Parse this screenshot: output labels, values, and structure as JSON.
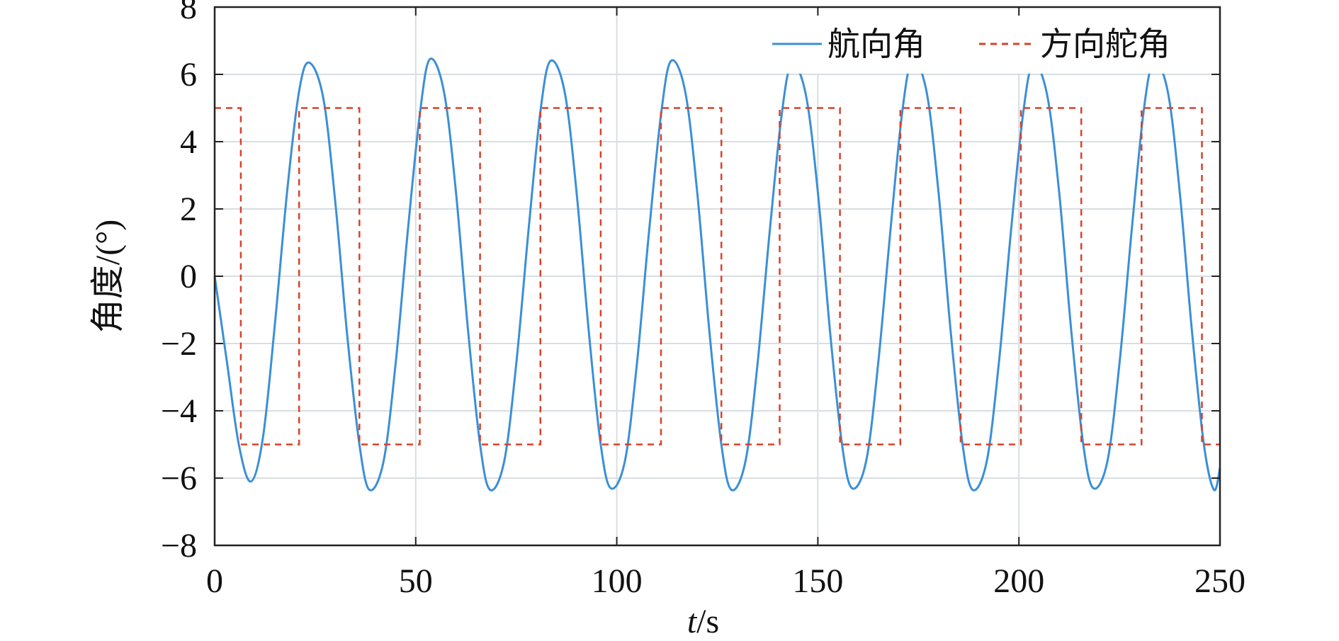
{
  "chart_data": {
    "type": "line",
    "xlabel_italic": "t",
    "xlabel_unit": "/s",
    "ylabel": "角度/(°)",
    "xlim": [
      0,
      250
    ],
    "ylim": [
      -8,
      8
    ],
    "xticks": [
      0,
      50,
      100,
      150,
      200,
      250
    ],
    "yticks": [
      -8,
      -6,
      -4,
      -2,
      0,
      2,
      4,
      6,
      8
    ],
    "xtick_labels": [
      "0",
      "50",
      "100",
      "150",
      "200",
      "250"
    ],
    "ytick_labels": [
      "−8",
      "−6",
      "−4",
      "−2",
      "0",
      "2",
      "4",
      "6",
      "8"
    ],
    "grid": true,
    "legend_position": "top-right",
    "colors": {
      "heading": "#3b8fd6",
      "rudder": "#d9412b",
      "grid": "#d9dee2",
      "axis": "#222222"
    },
    "series": [
      {
        "name": "航向角",
        "style": "solid",
        "x": [
          0,
          3,
          6,
          9,
          12,
          15,
          18,
          21,
          23.5,
          27,
          30,
          33,
          36,
          38.5,
          42,
          45,
          48,
          51,
          53.5,
          57,
          60,
          63,
          66,
          68.5,
          72,
          75,
          78,
          81,
          83.5,
          87,
          90,
          93,
          96,
          98.5,
          102,
          105,
          108,
          111,
          113.5,
          117,
          120,
          123,
          126,
          128.5,
          132,
          135,
          138,
          141,
          143.5,
          147,
          150,
          153,
          156,
          158.5,
          162,
          165,
          168,
          171,
          173.5,
          177,
          180,
          183,
          186,
          188.5,
          192,
          195,
          198,
          201,
          203.5,
          207,
          210,
          213,
          216,
          218.5,
          222,
          225,
          228,
          231,
          233.5,
          237,
          240,
          243,
          246,
          248.5,
          250
        ],
        "y": [
          0,
          -2.5,
          -5.0,
          -6.1,
          -4.8,
          -1.4,
          2.5,
          5.5,
          6.35,
          5.3,
          2.2,
          -1.8,
          -5.0,
          -6.35,
          -5.5,
          -2.6,
          1.3,
          4.8,
          6.45,
          5.5,
          2.5,
          -1.6,
          -5.0,
          -6.35,
          -5.5,
          -2.6,
          1.3,
          4.9,
          6.4,
          5.5,
          2.5,
          -1.6,
          -5.0,
          -6.3,
          -5.5,
          -2.6,
          1.3,
          4.8,
          6.4,
          5.5,
          2.5,
          -1.6,
          -5.0,
          -6.35,
          -5.5,
          -2.6,
          1.3,
          4.8,
          6.3,
          5.4,
          2.5,
          -1.6,
          -5.0,
          -6.3,
          -5.5,
          -2.6,
          1.3,
          4.9,
          6.4,
          5.5,
          2.5,
          -1.6,
          -5.0,
          -6.35,
          -5.5,
          -2.6,
          1.3,
          4.8,
          6.3,
          5.4,
          2.5,
          -1.6,
          -5.0,
          -6.3,
          -5.5,
          -2.6,
          1.3,
          4.9,
          6.35,
          5.5,
          2.5,
          -1.6,
          -5.0,
          -6.35,
          -5.7
        ]
      },
      {
        "name": "方向舵角",
        "style": "dashed",
        "x": [
          0,
          6.5,
          6.5,
          21,
          21,
          36,
          36,
          51,
          51,
          66,
          66,
          81,
          81,
          96,
          96,
          111,
          111,
          126,
          126,
          140.5,
          140.5,
          155.5,
          155.5,
          170.5,
          170.5,
          185.5,
          185.5,
          200.5,
          200.5,
          215.5,
          215.5,
          230.5,
          230.5,
          245.5,
          245.5,
          250
        ],
        "y": [
          5,
          5,
          -5,
          -5,
          5,
          5,
          -5,
          -5,
          5,
          5,
          -5,
          -5,
          5,
          5,
          -5,
          -5,
          5,
          5,
          -5,
          -5,
          5,
          5,
          -5,
          -5,
          5,
          5,
          -5,
          -5,
          5,
          5,
          -5,
          -5,
          5,
          5,
          -5,
          -5
        ]
      }
    ]
  }
}
